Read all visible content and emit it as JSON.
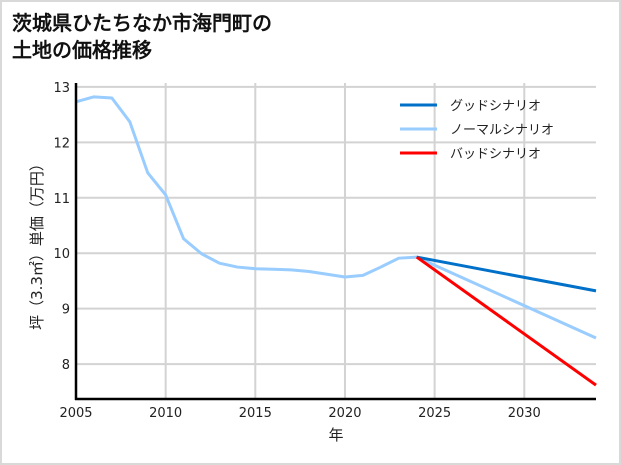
{
  "title_line1": "茨城県ひたちなか市海門町の",
  "title_line2": "土地の価格推移",
  "chart_data": {
    "type": "line",
    "title": "茨城県ひたちなか市海門町の土地の価格推移",
    "xlabel": "年",
    "ylabel": "坪（3.3㎡）単価（万円）",
    "xlim": [
      2005,
      2034
    ],
    "ylim": [
      7.37,
      13.07
    ],
    "grid": true,
    "legend_position": "top-right",
    "x_ticks": [
      2005,
      2010,
      2015,
      2020,
      2025,
      2030
    ],
    "y_ticks": [
      8,
      9,
      10,
      11,
      12,
      13
    ],
    "series": [
      {
        "name": "グッドシナリオ",
        "color": "#0070c8",
        "x": [
          2024,
          2034
        ],
        "y": [
          9.93,
          9.32
        ]
      },
      {
        "name": "ノーマルシナリオ",
        "color": "#99ccff",
        "x": [
          2005,
          2006,
          2007,
          2008,
          2009,
          2010,
          2011,
          2012,
          2013,
          2014,
          2015,
          2016,
          2017,
          2018,
          2019,
          2020,
          2021,
          2022,
          2023,
          2024,
          2034
        ],
        "y": [
          12.73,
          12.82,
          12.8,
          12.37,
          11.45,
          11.05,
          10.26,
          9.99,
          9.82,
          9.75,
          9.72,
          9.71,
          9.7,
          9.67,
          9.62,
          9.57,
          9.6,
          9.75,
          9.91,
          9.93,
          8.47
        ]
      },
      {
        "name": "バッドシナリオ",
        "color": "#ff0000",
        "x": [
          2024,
          2034
        ],
        "y": [
          9.93,
          7.62
        ]
      }
    ]
  }
}
